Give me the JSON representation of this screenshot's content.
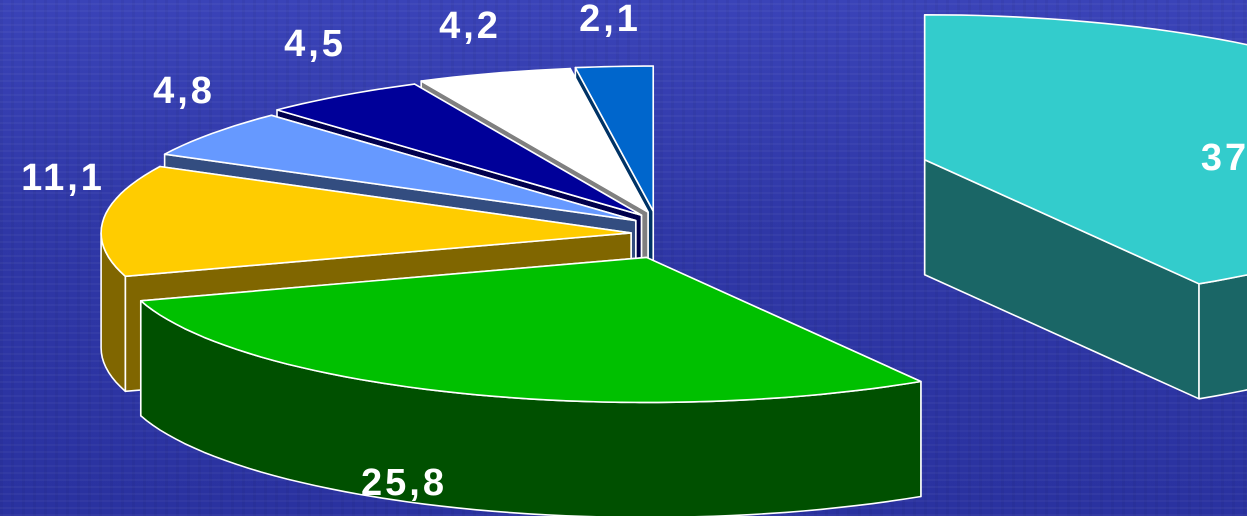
{
  "chart_data": {
    "type": "pie",
    "style": "3d-exploded",
    "title": "",
    "labels": [
      "37",
      "25,8",
      "11,1",
      "4,8",
      "4,5",
      "4,2",
      "2,1"
    ],
    "values": [
      37,
      25.8,
      11.1,
      4.8,
      4.5,
      4.2,
      2.1
    ],
    "colors": [
      "#33cccc",
      "#00c000",
      "#ffcc00",
      "#6699ff",
      "#000099",
      "#ffffff",
      "#0066cc"
    ],
    "side_colors": [
      "#1a6666",
      "#005000",
      "#806600",
      "#334d80",
      "#00004d",
      "#808080",
      "#003366"
    ],
    "legend": "none"
  }
}
